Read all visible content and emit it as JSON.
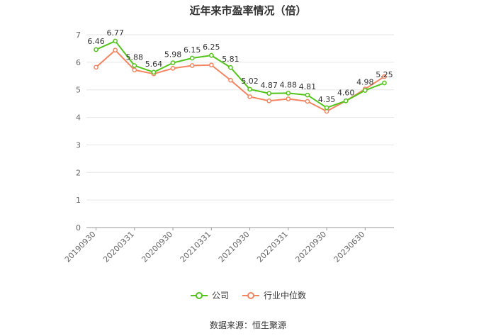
{
  "chart_data": {
    "type": "line",
    "title": "近年来市盈率情况（倍）",
    "xlabel": "",
    "ylabel": "",
    "ylim": [
      0,
      7
    ],
    "yticks": [
      0,
      1,
      2,
      3,
      4,
      5,
      6,
      7
    ],
    "x_tick_labels": [
      "20190930",
      "20200331",
      "20200930",
      "20210331",
      "20210930",
      "20220331",
      "20220930",
      "20230630"
    ],
    "x_tick_positions": [
      0,
      2,
      4,
      6,
      8,
      10,
      12,
      14
    ],
    "points_count": 16,
    "grid": true,
    "legend_position": "bottom",
    "series": [
      {
        "name": "公司",
        "color": "#52c41a",
        "values": [
          6.46,
          6.77,
          5.88,
          5.64,
          5.98,
          6.15,
          6.25,
          5.81,
          5.02,
          4.87,
          4.88,
          4.81,
          4.35,
          4.6,
          4.98,
          5.25
        ],
        "data_labels": [
          "6.46",
          "6.77",
          "5.88",
          "5.64",
          "5.98",
          "6.15",
          "6.25",
          "5.81",
          "5.02",
          "4.87",
          "4.88",
          "4.81",
          "4.35",
          "4.60",
          "4.98",
          "5.25"
        ]
      },
      {
        "name": "行业中位数",
        "color": "#f4845f",
        "values": [
          5.82,
          6.44,
          5.72,
          5.58,
          5.78,
          5.88,
          5.9,
          5.35,
          4.75,
          4.6,
          4.67,
          4.58,
          4.22,
          4.6,
          5.03,
          5.48
        ]
      }
    ],
    "source": "数据来源：恒生聚源"
  }
}
